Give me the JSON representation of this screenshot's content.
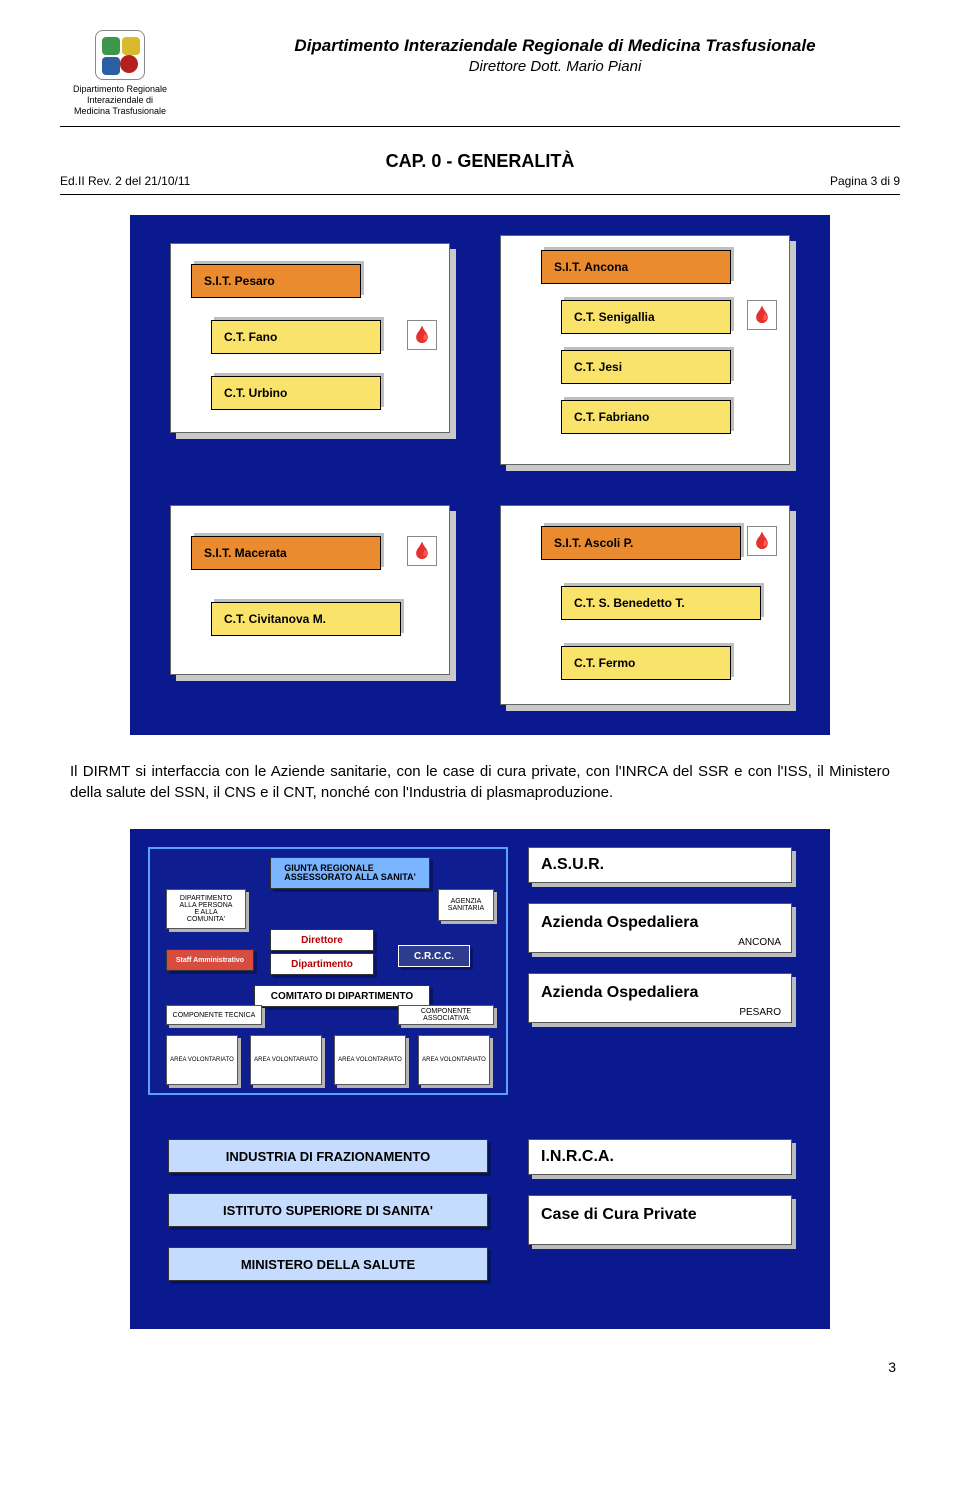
{
  "logo_caption": "Dipartimento Regionale\nInteraziendale di\nMedicina Trasfusionale",
  "doc_title": "Dipartimento Interaziendale Regionale di Medicina Trasfusionale",
  "doc_subtitle": "Direttore Dott. Mario Piani",
  "chapter_title": "CAP. 0 - GENERALITÀ",
  "revision": "Ed.II Rev. 2 del 21/10/11",
  "page_marker": "Pagina 3 di 9",
  "body_text": "Il DIRMT si interfaccia con le Aziende sanitarie, con le case di cura private, con l'INRCA del SSR e con l'ISS, il Ministero della salute del SSN, il CNS e il CNT, nonché con l'Industria di plasmaproduzione.",
  "page_number": "3",
  "diagram1": {
    "bg": "#0a1a8e",
    "panel1": {
      "sit": "S.I.T. Pesaro",
      "ct": [
        "C.T. Fano",
        "C.T. Urbino"
      ]
    },
    "panel2": {
      "sit": "S.I.T. Ancona",
      "ct": [
        "C.T. Senigallia",
        "C.T. Jesi",
        "C.T. Fabriano"
      ]
    },
    "panel3": {
      "sit": "S.I.T. Macerata",
      "ct": [
        "C.T. Civitanova M."
      ]
    },
    "panel4": {
      "sit": "S.I.T. Ascoli P.",
      "ct": [
        "C.T. S. Benedetto T.",
        "C.T. Fermo"
      ]
    }
  },
  "diagram2": {
    "left_upper": {
      "giunta": "GIUNTA REGIONALE\nASSESSORATO ALLA SANITA'",
      "dip_persona": "DIPARTIMENTO\nALLA PERSONA\nE ALLA\nCOMUNITA'",
      "agenzia": "AGENZIA\nSANITARIA",
      "direttore": "Direttore",
      "dipartimento": "Dipartimento",
      "staff": "Staff Amministrativo",
      "crcc": "C.R.C.C.",
      "comitato": "COMITATO DI DIPARTIMENTO",
      "tecnica": "COMPONENTE TECNICA",
      "assoc": "COMPONENTE ASSOCIATIVA",
      "area": "AREA VOLONTARIATO"
    },
    "left_lower": [
      "INDUSTRIA DI FRAZIONAMENTO",
      "ISTITUTO SUPERIORE DI SANITA'",
      "MINISTERO DELLA SALUTE"
    ],
    "right_upper": [
      {
        "label": "A.S.U.R.",
        "sub": ""
      },
      {
        "label": "Azienda Ospedaliera",
        "sub": "ANCONA"
      },
      {
        "label": "Azienda Ospedaliera",
        "sub": "PESARO"
      }
    ],
    "right_lower": [
      {
        "label": "I.N.R.C.A.",
        "sub": ""
      },
      {
        "label": "Case di Cura Private",
        "sub": ""
      }
    ]
  }
}
